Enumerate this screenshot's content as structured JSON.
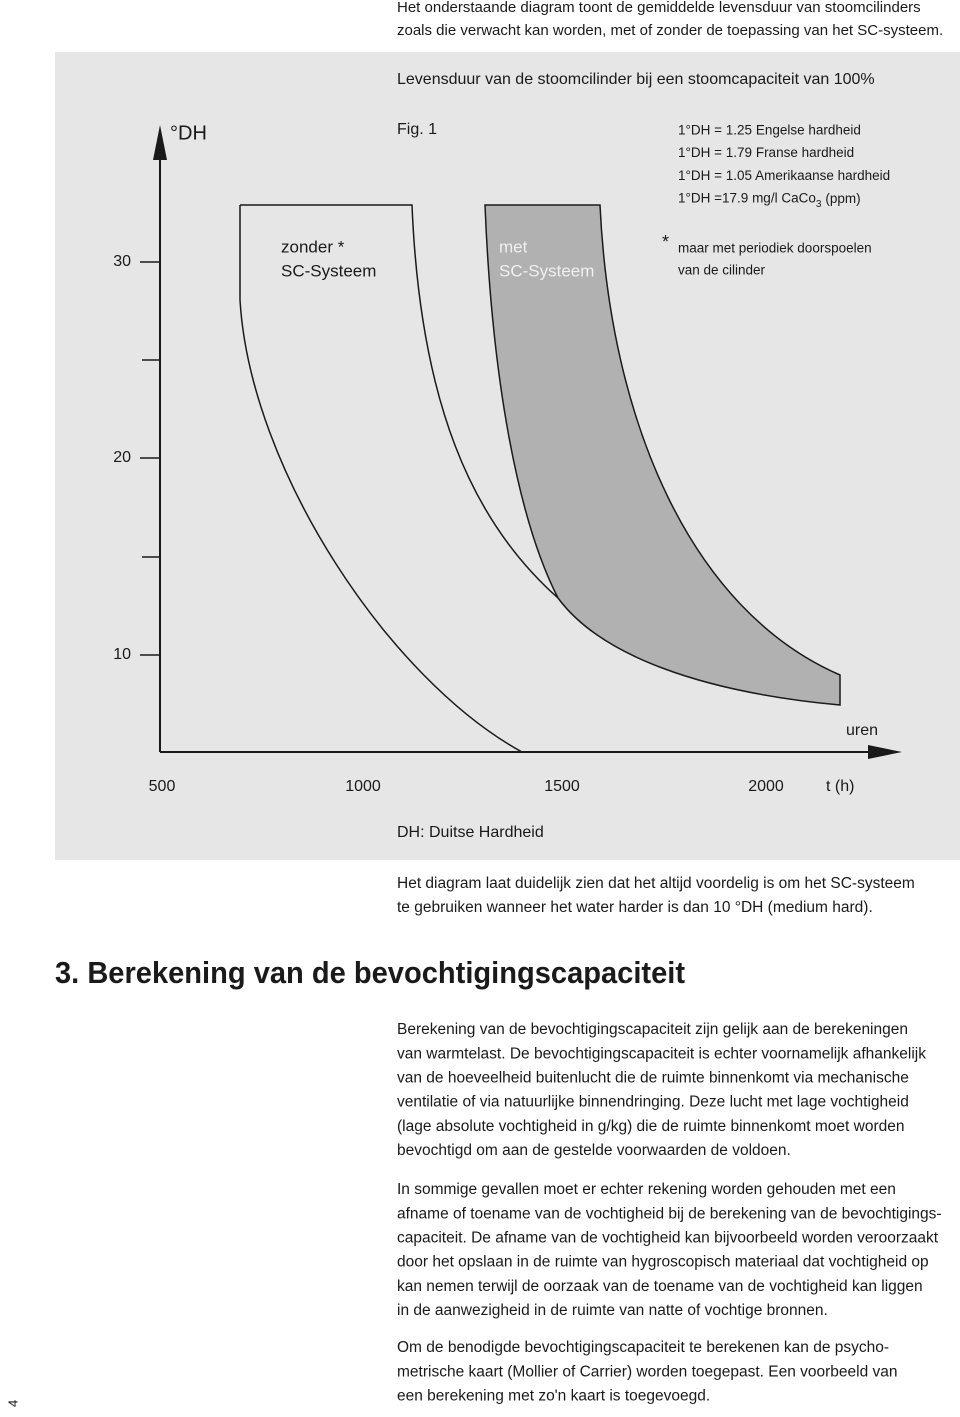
{
  "intro": [
    "Het onderstaande diagram toont de gemiddelde levensduur van stoomcilinders",
    "zoals die verwacht kan worden, met of zonder de toepassing van het SC-systeem."
  ],
  "figure": {
    "title": "Levensduur van de stoomcilinder bij een stoomcapaciteit van 100%",
    "fig_label": "Fig. 1",
    "y_axis_label": "°DH",
    "yticks": [
      "30",
      "20",
      "10"
    ],
    "xticks": [
      "500",
      "1000",
      "1500",
      "2000"
    ],
    "x_unit": "t (h)",
    "x_axis_label": "uren",
    "legend": [
      "1°DH = 1.25 Engelse hardheid",
      "1°DH = 1.79 Franse hardheid",
      "1°DH = 1.05 Amerikaanse hardheid"
    ],
    "legend_last": {
      "text": "1°DH =17.9 mg/l CaCo",
      "sub": "3",
      "suffix": "(ppm)"
    },
    "curve_without": [
      "zonder *",
      "SC-Systeem"
    ],
    "curve_with": [
      "met",
      "SC-Systeem"
    ],
    "footnote_mark": "*",
    "footnote": [
      "maar met periodiek doorspoelen",
      "van de cilinder"
    ],
    "caption": "DH: Duitse Hardheid"
  },
  "conclusion": [
    "Het diagram laat duidelijk zien dat het altijd voordelig is om het SC-systeem",
    "te gebruiken wanneer het water harder is dan 10 °DH (medium hard)."
  ],
  "section": {
    "heading": "3. Berekening van de bevochtigingscapaciteit",
    "paragraphs": [
      [
        "Berekening van de bevochtigingscapaciteit zijn gelijk aan de berekeningen",
        "van warmtelast. De bevochtigingscapaciteit is echter voornamelijk afhankelijk",
        "van de hoeveelheid buitenlucht die de ruimte binnenkomt via mechanische",
        "ventilatie of via natuurlijke binnendringing. Deze lucht met lage vochtigheid",
        "(lage absolute vochtigheid in g/kg) die de ruimte binnenkomt moet worden",
        "bevochtigd om aan de gestelde voorwaarden de voldoen."
      ],
      [
        "In sommige gevallen moet er echter rekening worden gehouden met een",
        "afname of toename van de vochtigheid bij de berekening van de bevochtigings-",
        "capaciteit. De afname van de vochtigheid kan bijvoorbeeld worden veroorzaakt",
        "door het opslaan in de ruimte van hygroscopisch materiaal dat vochtigheid op",
        "kan nemen terwijl de oorzaak van de toename van de vochtigheid kan liggen",
        "in de aanwezigheid in de ruimte van natte of vochtige bronnen."
      ],
      [
        "Om de benodigde bevochtigingscapaciteit te berekenen kan de psycho-",
        "metrische kaart (Mollier of Carrier) worden toegepast. Een voorbeeld van",
        "een berekening met zo'n kaart is toegevoegd."
      ]
    ]
  },
  "page_number": "4"
}
